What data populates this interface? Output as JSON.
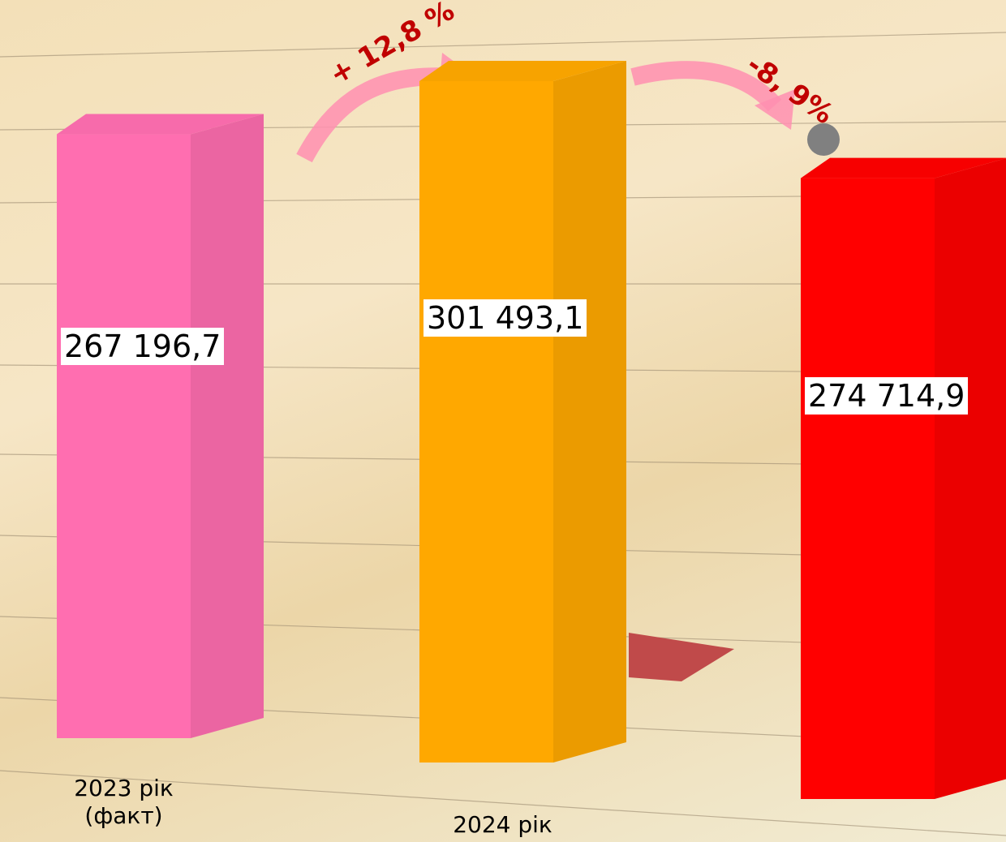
{
  "chart_data": {
    "type": "bar3d",
    "categories": [
      "2023 рік (факт)",
      "2024 рік",
      null
    ],
    "values": [
      267196.7,
      301493.1,
      274714.9
    ],
    "value_labels": [
      "267 196,7",
      "301 493,1",
      "274 714,9"
    ],
    "colors": [
      "#ff6eb0",
      "#ffa800",
      "#ff0000"
    ],
    "annotations": [
      "+ 12,8 %",
      "-8, 9%"
    ]
  }
}
